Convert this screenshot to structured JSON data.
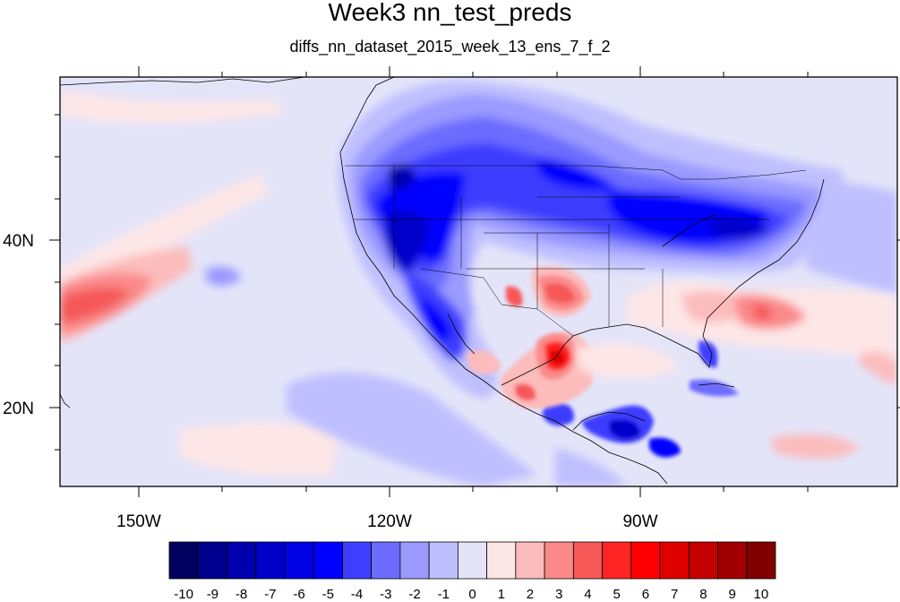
{
  "title": "Week3 nn_test_preds",
  "subtitle": "diffs_nn_dataset_2015_week_13_ens_7_f_2",
  "map": {
    "projection": "cylindrical equidistant",
    "region": "North America and adjacent Pacific / Atlantic",
    "lon_range": [
      -170,
      -70
    ],
    "lat_range": [
      10,
      59
    ],
    "x_tick_labels": [
      "150W",
      "120W",
      "90W"
    ],
    "y_tick_labels": [
      "40N",
      "20N"
    ]
  },
  "colorbar": {
    "labels": [
      "-10",
      "-9",
      "-8",
      "-7",
      "-6",
      "-5",
      "-4",
      "-3",
      "-2",
      "-1",
      "0",
      "1",
      "2",
      "3",
      "4",
      "5",
      "6",
      "7",
      "8",
      "9",
      "10"
    ],
    "colors": [
      "#00005e",
      "#00008f",
      "#0000ae",
      "#0000cb",
      "#0000e4",
      "#0000ff",
      "#3e3eff",
      "#6c6cff",
      "#9a9aff",
      "#bfbfff",
      "#e4e4f9",
      "#fde6e6",
      "#fcbcbc",
      "#fa8a8a",
      "#f65858",
      "#ff2424",
      "#ff0000",
      "#e00000",
      "#c40000",
      "#a20000",
      "#800000"
    ]
  },
  "chart_data": {
    "type": "heatmap",
    "title": "Week3 nn_test_preds",
    "subtitle": "diffs_nn_dataset_2015_week_13_ens_7_f_2",
    "x_axis": {
      "ticks": [
        "150W",
        "120W",
        "90W"
      ]
    },
    "y_axis": {
      "ticks": [
        "40N",
        "20N"
      ]
    },
    "levels": [
      -10,
      -9,
      -8,
      -7,
      -6,
      -5,
      -4,
      -3,
      -2,
      -1,
      0,
      1,
      2,
      3,
      4,
      5,
      6,
      7,
      8,
      9,
      10
    ],
    "features": [
      {
        "region": "Western US (California/Nevada/Oregon)",
        "level": -7
      },
      {
        "region": "Northern Plains / Great Lakes / Northeast US",
        "level": -5
      },
      {
        "region": "Southwest US / Arizona",
        "level": -6
      },
      {
        "region": "Texas / Gulf coast",
        "level": 6
      },
      {
        "region": "Southern Plains / Oklahoma",
        "level": 4
      },
      {
        "region": "Central America / southern Mexico",
        "level": -6
      },
      {
        "region": "Subtropical Pacific near 30N 165W",
        "level": 4
      },
      {
        "region": "Western Atlantic off Southeast US",
        "level": 3
      },
      {
        "region": "Caribbean",
        "level": 2
      }
    ]
  }
}
